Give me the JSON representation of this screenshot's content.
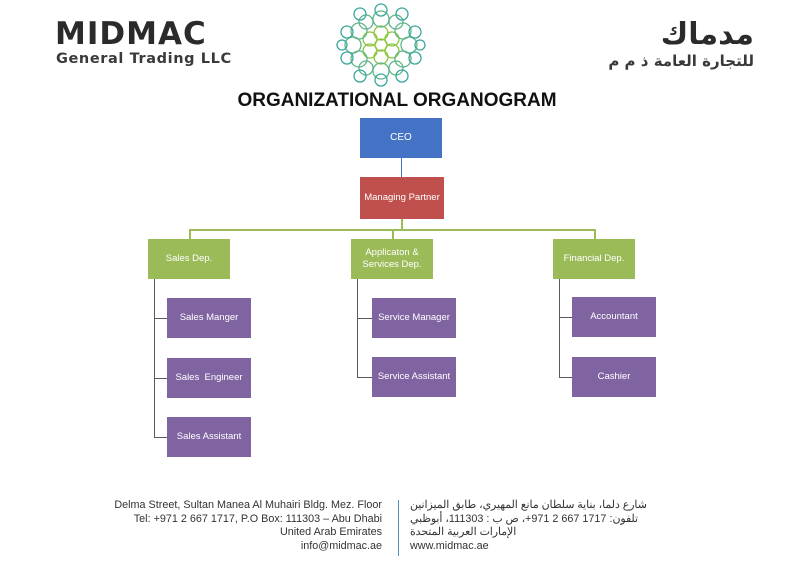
{
  "header": {
    "brand_name": "MIDMAC",
    "brand_sub": "General Trading LLC",
    "brand_ar_name": "مدماك",
    "brand_ar_sub": "للتجارة العامة ذ م م",
    "logo_icon": "floral-rosette-logo",
    "colors": {
      "logo_teal": "#3aa89a",
      "logo_green": "#8cc63f"
    }
  },
  "title": "ORGANIZATIONAL ORGANOGRAM",
  "org": {
    "ceo": "CEO",
    "managing_partner": "Managing Partner",
    "departments": [
      {
        "name": "Sales Dep.",
        "roles": [
          "Sales Manger",
          "Sales  Engineer",
          "Sales Assistant"
        ]
      },
      {
        "name": "Applicaton & Services Dep.",
        "roles": [
          "Service Manager",
          "Service Assistant"
        ]
      },
      {
        "name": "Financial Dep.",
        "roles": [
          "Accountant",
          "Cashier"
        ]
      }
    ],
    "colors": {
      "ceo": "#4472c4",
      "managing_partner": "#c0504d",
      "department": "#9bbb59",
      "role": "#8064a2"
    }
  },
  "footer": {
    "left": [
      "Delma Street, Sultan Manea Al Muhairi Bldg. Mez. Floor",
      "Tel: +971 2 667 1717, P.O Box: 111303 – Abu Dhabi",
      "United Arab Emirates",
      "info@midmac.ae"
    ],
    "right": [
      "شارع دلما، بناية سلطان مانع المهيري، طابق الميزانين",
      "تلفون: 1717 667 2 971+، ص ب : 111303، أبوظبي",
      "الإمارات العربية المتحدة",
      "www.midmac.ae"
    ]
  }
}
